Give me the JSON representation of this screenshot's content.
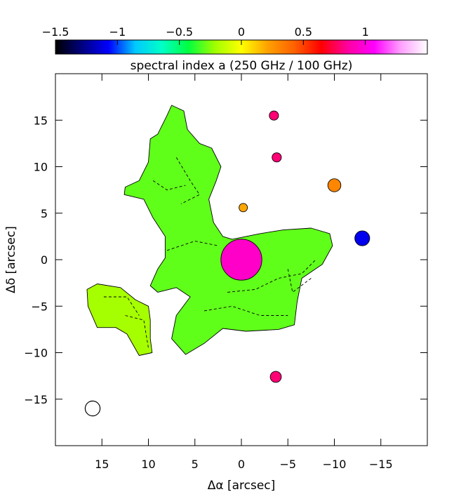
{
  "chart_data": {
    "type": "heatmap",
    "title": "",
    "xlabel": "Δα [arcsec]",
    "ylabel": "Δδ [arcsec]",
    "xlim": [
      20,
      -20
    ],
    "ylim": [
      -20,
      20
    ],
    "x_ticks": [
      15,
      10,
      5,
      0,
      -5,
      -10,
      -15
    ],
    "y_ticks": [
      15,
      10,
      5,
      0,
      -5,
      -10,
      -15
    ],
    "x_tick_labels": [
      "15",
      "10",
      "5",
      "0",
      "−5",
      "−10",
      "−15"
    ],
    "y_tick_labels": [
      "15",
      "10",
      "5",
      "0",
      "−5",
      "−10",
      "−15"
    ],
    "colorbar": {
      "label": "spectral index a (250 GHz / 100 GHz)",
      "range": [
        -1.5,
        1.5
      ],
      "ticks": [
        -1.5,
        -1,
        -0.5,
        0,
        0.5,
        1
      ],
      "tick_labels": [
        "−1.5",
        "−1",
        "−0.5",
        "0",
        "0.5",
        "1"
      ],
      "colormap": [
        "#000000",
        "#000080",
        "#0000ff",
        "#00c8ff",
        "#00ffc8",
        "#00ff40",
        "#a0ff00",
        "#ffff00",
        "#ffa000",
        "#ff6000",
        "#ff0000",
        "#ff00a0",
        "#ff00ff",
        "#ffa0ff",
        "#ffffff"
      ]
    },
    "beam": {
      "x": 16,
      "y": -16,
      "radius": 0.8
    },
    "regions": [
      {
        "name": "central-complex",
        "level": -0.3,
        "outline": [
          [
            7.5,
            16.6
          ],
          [
            6.2,
            16
          ],
          [
            5.8,
            14
          ],
          [
            4.5,
            12.5
          ],
          [
            3.2,
            12
          ],
          [
            2.2,
            10
          ],
          [
            2.7,
            8.5
          ],
          [
            3.5,
            6.5
          ],
          [
            3,
            4
          ],
          [
            2,
            2.5
          ],
          [
            1,
            2.2
          ],
          [
            -2,
            2.8
          ],
          [
            -4.5,
            3.2
          ],
          [
            -7.5,
            3.4
          ],
          [
            -9.5,
            2.8
          ],
          [
            -9.8,
            1.5
          ],
          [
            -8.7,
            -0.5
          ],
          [
            -6.5,
            -2
          ],
          [
            -6,
            -4.5
          ],
          [
            -5.7,
            -7
          ],
          [
            -4,
            -7.5
          ],
          [
            -0.5,
            -7.7
          ],
          [
            2,
            -7.4
          ],
          [
            4,
            -9
          ],
          [
            6,
            -10.2
          ],
          [
            7.5,
            -8.5
          ],
          [
            7,
            -6
          ],
          [
            5.5,
            -4
          ],
          [
            7,
            -3
          ],
          [
            9,
            -3.5
          ],
          [
            9.8,
            -2.8
          ],
          [
            9,
            -1
          ],
          [
            8.2,
            0.2
          ],
          [
            8.2,
            2.5
          ],
          [
            9.5,
            4.5
          ],
          [
            10.5,
            6.5
          ],
          [
            12.6,
            7
          ],
          [
            12.5,
            7.8
          ],
          [
            11,
            8.5
          ],
          [
            10,
            10.5
          ],
          [
            9.8,
            13
          ],
          [
            9,
            13.5
          ],
          [
            8,
            15.5
          ]
        ]
      },
      {
        "name": "core-peak",
        "level": 0.95,
        "cx": 0,
        "cy": 0,
        "r": 2.2
      },
      {
        "name": "left-blob",
        "level": -0.2,
        "outline": [
          [
            16.6,
            -3.2
          ],
          [
            15.5,
            -2.6
          ],
          [
            13,
            -3
          ],
          [
            11.4,
            -4.3
          ],
          [
            10,
            -5
          ],
          [
            9.8,
            -6.5
          ],
          [
            9.8,
            -8.5
          ],
          [
            9.6,
            -10
          ],
          [
            11,
            -10.3
          ],
          [
            12.3,
            -8
          ],
          [
            13.5,
            -7.3
          ],
          [
            15.5,
            -7.3
          ],
          [
            16.5,
            -5
          ]
        ]
      },
      {
        "name": "top-speck-1",
        "level": 0.8,
        "cx": -3.5,
        "cy": 15.5,
        "r": 0.5
      },
      {
        "name": "top-speck-2",
        "level": 0.8,
        "cx": -3.8,
        "cy": 11.0,
        "r": 0.5
      },
      {
        "name": "mid-speck",
        "level": 0.2,
        "cx": -0.2,
        "cy": 5.6,
        "r": 0.45
      },
      {
        "name": "right-speck-1",
        "level": 0.3,
        "cx": -10.0,
        "cy": 8.0,
        "r": 0.7
      },
      {
        "name": "right-speck-2",
        "level": -1.1,
        "cx": -13.0,
        "cy": 2.3,
        "r": 0.8
      },
      {
        "name": "bottom-speck",
        "level": 0.8,
        "cx": -3.7,
        "cy": -12.6,
        "r": 0.6
      }
    ],
    "contours": [
      [
        [
          1.5,
          -3.5
        ],
        [
          -1.5,
          -3.2
        ],
        [
          -4,
          -2
        ],
        [
          -6.5,
          -1.5
        ],
        [
          -8,
          0
        ]
      ],
      [
        [
          8,
          1
        ],
        [
          5,
          2
        ],
        [
          2.5,
          1.5
        ]
      ],
      [
        [
          4,
          -5.5
        ],
        [
          1,
          -5
        ],
        [
          -2,
          -6
        ],
        [
          -5,
          -6
        ]
      ],
      [
        [
          7,
          11
        ],
        [
          5.5,
          8.5
        ],
        [
          4.5,
          7
        ],
        [
          6.5,
          6
        ]
      ],
      [
        [
          14.8,
          -4
        ],
        [
          12.3,
          -4
        ],
        [
          11,
          -6
        ]
      ],
      [
        [
          12.5,
          -6
        ],
        [
          10.5,
          -6.5
        ],
        [
          10,
          -9.5
        ]
      ],
      [
        [
          9.5,
          8.5
        ],
        [
          8,
          7.5
        ],
        [
          6,
          8
        ]
      ],
      [
        [
          -5,
          -1
        ],
        [
          -5.5,
          -3.5
        ],
        [
          -7.5,
          -2
        ]
      ]
    ]
  }
}
